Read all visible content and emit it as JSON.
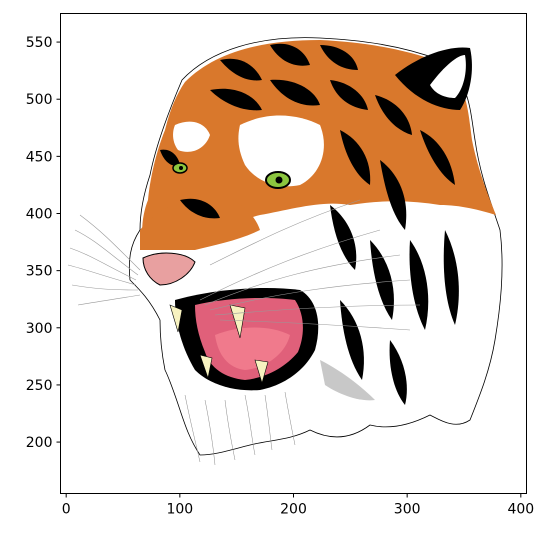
{
  "figure": {
    "image_subject": "tiger-head-illustration",
    "x_axis": {
      "range": [
        -5,
        405
      ],
      "ticks": [
        0,
        100,
        200,
        300,
        400
      ],
      "tick_labels": [
        "0",
        "100",
        "200",
        "300",
        "400"
      ]
    },
    "y_axis": {
      "range": [
        155,
        575
      ],
      "ticks": [
        200,
        250,
        300,
        350,
        400,
        450,
        500,
        550
      ],
      "tick_labels": [
        "200",
        "250",
        "300",
        "350",
        "400",
        "450",
        "500",
        "550"
      ]
    },
    "grid": false,
    "colors": {
      "fur_orange": "#d9782c",
      "fur_dark": "#000000",
      "mouth": "#e0607a",
      "tongue": "#f07a8c",
      "nose": "#e8a0a0",
      "eye": "#8cc63f",
      "teeth": "#f7f2c0",
      "shadow": "#c8c8c8"
    }
  }
}
